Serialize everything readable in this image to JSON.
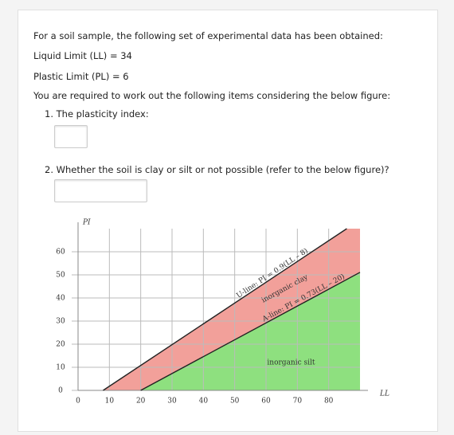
{
  "question": {
    "intro": "For a soil sample, the following set of experimental data has been obtained:",
    "liquid_limit": "Liquid Limit (LL) = 34",
    "plastic_limit": "Plastic Limit (PL) = 6",
    "instruction": "You are required to work out the following items considering the below figure:",
    "item_1": "1. The plasticity index:",
    "item_2": "2. Whether the soil is clay or silt or not possible (refer to the below figure)?"
  },
  "chart_data": {
    "type": "plasticity",
    "x_label": "LL",
    "y_label": "PI",
    "xlim": [
      0,
      90
    ],
    "ylim": [
      0,
      70
    ],
    "xticks": [
      0,
      10,
      20,
      30,
      40,
      50,
      60,
      70,
      80
    ],
    "yticks": [
      0,
      10,
      20,
      30,
      40,
      50,
      60
    ],
    "grid": true,
    "u_line": {
      "label": "U-line: PI = 0.9(LL – 8)",
      "slope": 0.9,
      "offset": 8
    },
    "a_line": {
      "label": "A-line: PI = 0.73(LL – 20)",
      "slope": 0.73,
      "offset": 20
    },
    "regions": [
      "inorganic clay",
      "inorganic silt"
    ]
  }
}
